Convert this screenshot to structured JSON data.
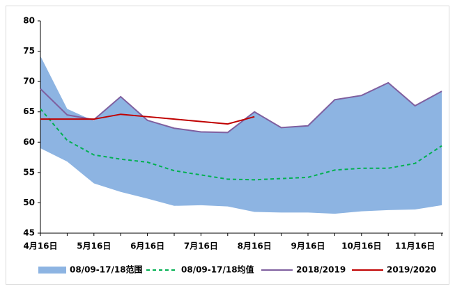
{
  "chart_data": {
    "type": "line",
    "categories": [
      "4月16日",
      null,
      "5月16日",
      null,
      "6月16日",
      null,
      "7月16日",
      null,
      "8月16日",
      null,
      "9月16日",
      null,
      "10月16日",
      null,
      "11月16日",
      null
    ],
    "series": [
      {
        "name": "08/09-17/18范围",
        "color": "#8db4e2",
        "kind": "range",
        "values": [
          74.2,
          65.5,
          63.5,
          67.5,
          63.6,
          62.3,
          61.7,
          61.6,
          65.0,
          62.4,
          62.7,
          67.0,
          67.7,
          69.8,
          66.0,
          68.4
        ],
        "low": [
          59.0,
          56.8,
          53.2,
          51.8,
          50.7,
          49.5,
          49.6,
          49.4,
          48.5,
          48.4,
          48.4,
          48.2,
          48.6,
          48.8,
          48.9,
          49.6
        ]
      },
      {
        "name": "08/09-17/18均值",
        "color": "#00b050",
        "dashed": true,
        "values": [
          65.5,
          60.3,
          57.9,
          57.2,
          56.7,
          55.3,
          54.6,
          53.9,
          53.8,
          54.0,
          54.2,
          55.4,
          55.7,
          55.7,
          56.5,
          59.4
        ]
      },
      {
        "name": "2018/2019",
        "color": "#7f5f9f",
        "values": [
          68.8,
          64.5,
          63.7,
          67.5,
          63.6,
          62.3,
          61.7,
          61.6,
          65.0,
          62.4,
          62.7,
          67.0,
          67.7,
          69.8,
          66.0,
          68.4
        ]
      },
      {
        "name": "2019/2020",
        "color": "#c00000",
        "values": [
          63.8,
          63.8,
          63.8,
          64.6,
          64.2,
          63.8,
          63.4,
          63.0,
          64.2,
          null,
          null,
          null,
          null,
          null,
          null,
          null
        ]
      }
    ],
    "ylim": [
      45,
      80
    ],
    "yticks": [
      45,
      50,
      55,
      60,
      65,
      70,
      75,
      80
    ],
    "legend": "bottom"
  }
}
